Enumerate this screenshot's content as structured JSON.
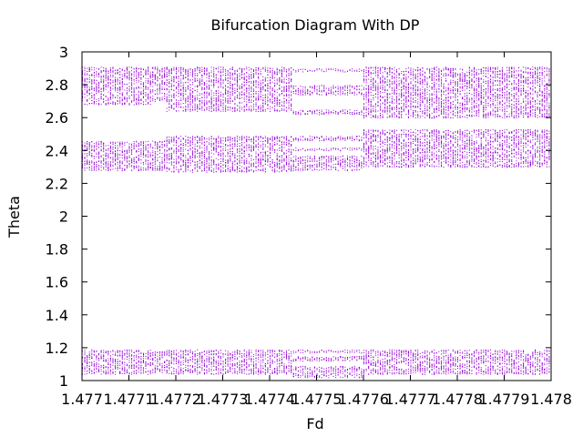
{
  "chart_data": {
    "type": "scatter",
    "title": "Bifurcation Diagram With DP",
    "xlabel": "Fd",
    "ylabel": "Theta",
    "xlim": [
      1.477,
      1.478
    ],
    "ylim": [
      1.0,
      3.0
    ],
    "x_ticks": [
      "1.477",
      "1.4771",
      "1.4772",
      "1.4773",
      "1.4774",
      "1.4775",
      "1.4776",
      "1.4777",
      "1.4778",
      "1.4779",
      "1.478"
    ],
    "y_ticks": [
      "1",
      "1.2",
      "1.4",
      "1.6",
      "1.8",
      "2",
      "2.2",
      "2.4",
      "2.6",
      "2.8",
      "3"
    ],
    "grid": false,
    "legend": "none",
    "point_color": "#9400d3",
    "x_step": 5e-06,
    "regimes": [
      {
        "x_range": [
          1.477,
          1.47715
        ],
        "theta_bands": [
          [
            2.68,
            2.91
          ],
          [
            2.28,
            2.46
          ],
          [
            1.04,
            1.19
          ]
        ]
      },
      {
        "x_range": [
          1.47715,
          1.47718
        ],
        "theta_bands": [
          [
            2.7,
            2.91
          ],
          [
            2.28,
            2.46
          ],
          [
            1.05,
            1.18
          ]
        ]
      },
      {
        "x_range": [
          1.47718,
          1.47745
        ],
        "theta_bands": [
          [
            2.64,
            2.91
          ],
          [
            2.27,
            2.49
          ],
          [
            1.04,
            1.19
          ]
        ]
      },
      {
        "x_range": [
          1.47745,
          1.4776
        ],
        "theta_bands": [
          [
            2.88,
            2.9
          ],
          [
            2.74,
            2.8
          ],
          [
            2.62,
            2.65
          ],
          [
            2.46,
            2.49
          ],
          [
            2.4,
            2.42
          ],
          [
            2.28,
            2.37
          ],
          [
            1.17,
            1.19
          ],
          [
            1.12,
            1.15
          ],
          [
            1.02,
            1.09
          ]
        ]
      },
      {
        "x_range": [
          1.4776,
          1.478
        ],
        "theta_bands": [
          [
            2.6,
            2.91
          ],
          [
            2.3,
            2.53
          ],
          [
            1.04,
            1.19
          ]
        ]
      }
    ]
  }
}
